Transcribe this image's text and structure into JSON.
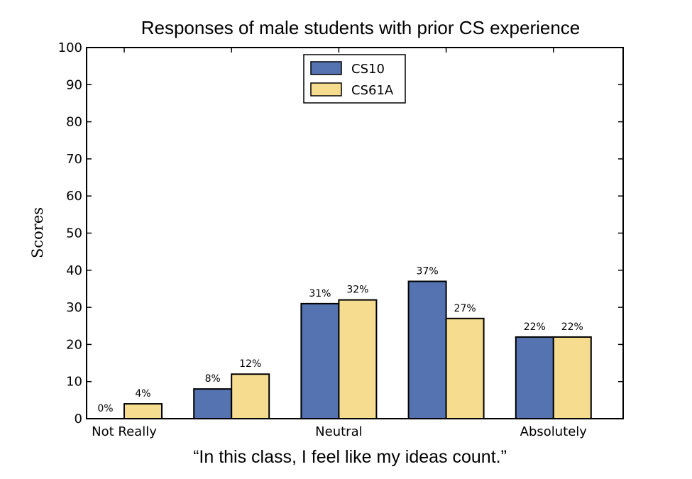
{
  "chart_data": {
    "type": "bar",
    "title": "Responses of male students with prior CS experience",
    "xlabel": "“In this class, I feel like my ideas count.”",
    "ylabel": "Scores",
    "ylim": [
      0,
      100
    ],
    "yticks": [
      0,
      10,
      20,
      30,
      40,
      50,
      60,
      70,
      80,
      90,
      100
    ],
    "categories": [
      "Not Really",
      "",
      "Neutral",
      "",
      "Absolutely"
    ],
    "series": [
      {
        "name": "CS10",
        "color": "#5573b0",
        "values": [
          0,
          8,
          31,
          37,
          22
        ],
        "labels": [
          "0%",
          "8%",
          "31%",
          "37%",
          "22%"
        ]
      },
      {
        "name": "CS61A",
        "color": "#f6dc8f",
        "values": [
          4,
          12,
          32,
          27,
          22
        ],
        "labels": [
          "4%",
          "12%",
          "32%",
          "27%",
          "22%"
        ]
      }
    ],
    "legend": "top-center",
    "grid": false
  }
}
